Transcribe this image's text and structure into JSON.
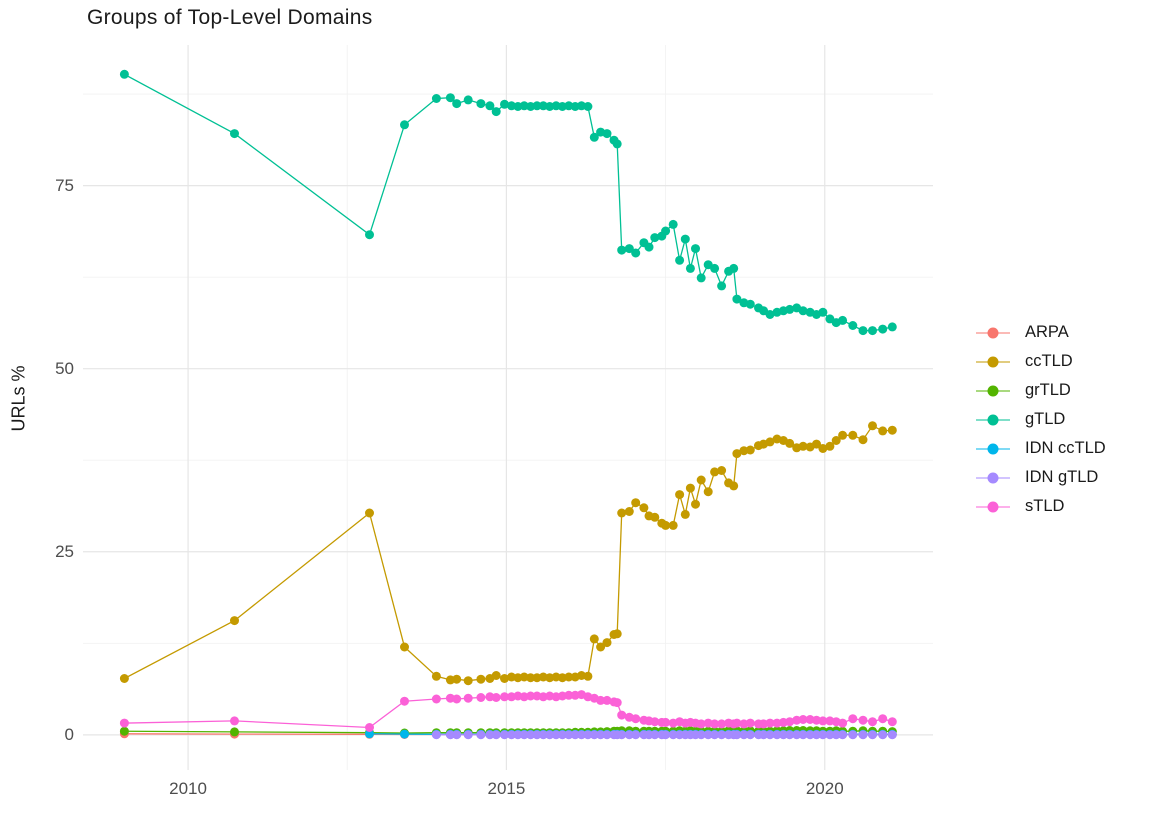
{
  "title": "Groups of Top-Level Domains",
  "y_axis_title": "URLs %",
  "chart_data": {
    "type": "line",
    "title": "Groups of Top-Level Domains",
    "xlabel": "",
    "ylabel": "URLs %",
    "x_unit": "year (decimal)",
    "xlim": [
      2008.35,
      2021.7
    ],
    "ylim": [
      -4.8,
      94.2
    ],
    "x_major_ticks": [
      2010,
      2015,
      2020
    ],
    "x_major_labels": [
      "2010",
      "2015",
      "2020"
    ],
    "x_minor_ticks": [
      2012.5,
      2017.5
    ],
    "y_major_ticks": [
      0,
      25,
      50,
      75
    ],
    "y_major_labels": [
      "0",
      "25",
      "50",
      "75"
    ],
    "y_minor_ticks": [
      12.5,
      37.5,
      62.5,
      87.5
    ],
    "grid": "major+minor on white (ggplot minimal)",
    "legend_position": "right",
    "marker": "point",
    "x": [
      2009.0,
      2010.73,
      2012.85,
      2013.4,
      2013.9,
      2014.12,
      2014.22,
      2014.4,
      2014.6,
      2014.74,
      2014.84,
      2014.97,
      2015.08,
      2015.18,
      2015.28,
      2015.38,
      2015.48,
      2015.58,
      2015.68,
      2015.78,
      2015.88,
      2015.98,
      2016.08,
      2016.18,
      2016.28,
      2016.38,
      2016.48,
      2016.58,
      2016.69,
      2016.74,
      2016.81,
      2016.93,
      2017.03,
      2017.16,
      2017.24,
      2017.33,
      2017.44,
      2017.5,
      2017.62,
      2017.72,
      2017.81,
      2017.89,
      2017.97,
      2018.06,
      2018.17,
      2018.27,
      2018.38,
      2018.49,
      2018.57,
      2018.62,
      2018.73,
      2018.83,
      2018.96,
      2019.04,
      2019.14,
      2019.25,
      2019.35,
      2019.45,
      2019.56,
      2019.66,
      2019.77,
      2019.87,
      2019.97,
      2020.08,
      2020.18,
      2020.28,
      2020.44,
      2020.6,
      2020.75,
      2020.91,
      2021.06
    ],
    "series": [
      {
        "name": "ARPA",
        "color": "#F8766D",
        "values": [
          0.15,
          0.1,
          0.08,
          0.05,
          0.05,
          0.05,
          0.05,
          0.05,
          0.05,
          0.05,
          0.05,
          0.05,
          0.05,
          0.05,
          0.05,
          0.05,
          0.05,
          0.05,
          0.05,
          0.05,
          0.05,
          0.05,
          0.05,
          0.05,
          0.05,
          0.05,
          0.05,
          0.05,
          0.05,
          0.05,
          0.05,
          0.05,
          0.05,
          0.05,
          0.05,
          0.05,
          0.05,
          0.05,
          0.05,
          0.05,
          0.05,
          0.05,
          0.05,
          0.05,
          0.05,
          0.05,
          0.05,
          0.05,
          0.05,
          0.05,
          0.05,
          0.05,
          0.05,
          0.05,
          0.05,
          0.05,
          0.05,
          0.05,
          0.05,
          0.05,
          0.05,
          0.05,
          0.05,
          0.05,
          0.05,
          0.05,
          0.05,
          0.05,
          0.05,
          0.05,
          0.05
        ]
      },
      {
        "name": "ccTLD",
        "color": "#C49A00",
        "values": [
          7.7,
          15.6,
          30.3,
          12.0,
          8.0,
          7.5,
          7.6,
          7.4,
          7.6,
          7.7,
          8.1,
          7.7,
          7.9,
          7.8,
          7.9,
          7.8,
          7.8,
          7.9,
          7.8,
          7.9,
          7.8,
          7.9,
          7.9,
          8.1,
          8.0,
          13.1,
          12.0,
          12.6,
          13.7,
          13.8,
          30.3,
          30.5,
          31.7,
          31.0,
          29.9,
          29.7,
          28.9,
          28.6,
          28.6,
          32.8,
          30.1,
          33.7,
          31.5,
          34.8,
          33.2,
          35.9,
          36.1,
          34.4,
          34.0,
          38.4,
          38.8,
          38.9,
          39.5,
          39.7,
          40.0,
          40.4,
          40.2,
          39.8,
          39.2,
          39.4,
          39.3,
          39.7,
          39.1,
          39.4,
          40.2,
          40.9,
          40.9,
          40.3,
          42.2,
          41.5,
          41.6
        ]
      },
      {
        "name": "grTLD",
        "color": "#53B400",
        "values": [
          0.5,
          0.4,
          0.3,
          0.25,
          0.3,
          0.3,
          0.3,
          0.3,
          0.3,
          0.3,
          0.3,
          0.3,
          0.3,
          0.3,
          0.3,
          0.3,
          0.3,
          0.3,
          0.3,
          0.3,
          0.3,
          0.3,
          0.35,
          0.35,
          0.35,
          0.4,
          0.4,
          0.45,
          0.5,
          0.5,
          0.55,
          0.55,
          0.5,
          0.5,
          0.5,
          0.5,
          0.5,
          0.5,
          0.5,
          0.55,
          0.5,
          0.55,
          0.5,
          0.5,
          0.5,
          0.5,
          0.5,
          0.55,
          0.5,
          0.55,
          0.5,
          0.55,
          0.5,
          0.5,
          0.5,
          0.55,
          0.55,
          0.6,
          0.6,
          0.6,
          0.55,
          0.55,
          0.5,
          0.5,
          0.55,
          0.5,
          0.5,
          0.55,
          0.5,
          0.5,
          0.45
        ]
      },
      {
        "name": "gTLD",
        "color": "#00C094",
        "values": [
          90.2,
          82.1,
          68.3,
          83.3,
          86.9,
          87.0,
          86.2,
          86.7,
          86.2,
          85.9,
          85.1,
          86.1,
          85.9,
          85.8,
          85.9,
          85.8,
          85.9,
          85.9,
          85.8,
          85.9,
          85.8,
          85.9,
          85.8,
          85.9,
          85.8,
          81.6,
          82.3,
          82.1,
          81.2,
          80.7,
          66.2,
          66.4,
          65.8,
          67.2,
          66.6,
          67.9,
          68.1,
          68.8,
          69.7,
          64.8,
          67.7,
          63.7,
          66.4,
          62.4,
          64.2,
          63.7,
          61.3,
          63.3,
          63.7,
          59.5,
          59.0,
          58.8,
          58.3,
          57.9,
          57.4,
          57.7,
          57.9,
          58.1,
          58.3,
          57.9,
          57.7,
          57.4,
          57.7,
          56.8,
          56.3,
          56.6,
          55.9,
          55.2,
          55.2,
          55.4,
          55.7
        ]
      },
      {
        "name": "IDN ccTLD",
        "color": "#00B6EB",
        "values": [
          null,
          null,
          0.15,
          0.1,
          0.08,
          0.08,
          0.08,
          0.08,
          0.08,
          0.08,
          0.08,
          0.08,
          0.08,
          0.08,
          0.08,
          0.08,
          0.08,
          0.08,
          0.08,
          0.08,
          0.08,
          0.08,
          0.08,
          0.08,
          0.08,
          0.08,
          0.08,
          0.08,
          0.08,
          0.08,
          0.08,
          0.08,
          0.08,
          0.08,
          0.08,
          0.08,
          0.08,
          0.08,
          0.08,
          0.08,
          0.08,
          0.08,
          0.08,
          0.08,
          0.08,
          0.08,
          0.08,
          0.08,
          0.08,
          0.08,
          0.08,
          0.08,
          0.08,
          0.08,
          0.08,
          0.08,
          0.08,
          0.08,
          0.08,
          0.08,
          0.08,
          0.08,
          0.08,
          0.08,
          0.08,
          0.08,
          0.08,
          0.08,
          0.08,
          0.08,
          0.08
        ]
      },
      {
        "name": "IDN gTLD",
        "color": "#A58AFF",
        "values": [
          null,
          null,
          null,
          null,
          0.02,
          0.02,
          0.02,
          0.02,
          0.02,
          0.02,
          0.02,
          0.02,
          0.02,
          0.02,
          0.02,
          0.02,
          0.02,
          0.02,
          0.02,
          0.02,
          0.02,
          0.02,
          0.02,
          0.02,
          0.02,
          0.02,
          0.02,
          0.02,
          0.02,
          0.02,
          0.02,
          0.02,
          0.02,
          0.02,
          0.02,
          0.02,
          0.02,
          0.02,
          0.02,
          0.02,
          0.02,
          0.02,
          0.02,
          0.02,
          0.02,
          0.02,
          0.02,
          0.02,
          0.02,
          0.02,
          0.02,
          0.02,
          0.02,
          0.02,
          0.02,
          0.02,
          0.02,
          0.02,
          0.02,
          0.02,
          0.02,
          0.02,
          0.02,
          0.02,
          0.02,
          0.02,
          0.02,
          0.02,
          0.02,
          0.02,
          0.02
        ]
      },
      {
        "name": "sTLD",
        "color": "#FB61D7",
        "values": [
          1.6,
          1.9,
          1.0,
          4.6,
          4.9,
          5.0,
          4.9,
          5.0,
          5.1,
          5.2,
          5.1,
          5.2,
          5.2,
          5.3,
          5.2,
          5.3,
          5.3,
          5.2,
          5.3,
          5.2,
          5.3,
          5.4,
          5.4,
          5.5,
          5.2,
          5.0,
          4.7,
          4.7,
          4.5,
          4.4,
          2.7,
          2.4,
          2.2,
          2.0,
          1.9,
          1.8,
          1.7,
          1.7,
          1.6,
          1.8,
          1.6,
          1.7,
          1.6,
          1.5,
          1.6,
          1.5,
          1.5,
          1.6,
          1.5,
          1.6,
          1.5,
          1.6,
          1.5,
          1.5,
          1.6,
          1.6,
          1.7,
          1.8,
          2.0,
          2.1,
          2.1,
          2.0,
          1.9,
          1.9,
          1.8,
          1.6,
          2.2,
          2.0,
          1.8,
          2.2,
          1.8
        ]
      }
    ]
  },
  "colors": {
    "background": "#ffffff",
    "grid_major": "#e6e6e6",
    "grid_minor": "#f2f2f2",
    "axis_text": "#4d4d4d",
    "title_text": "#1b1b1b"
  }
}
